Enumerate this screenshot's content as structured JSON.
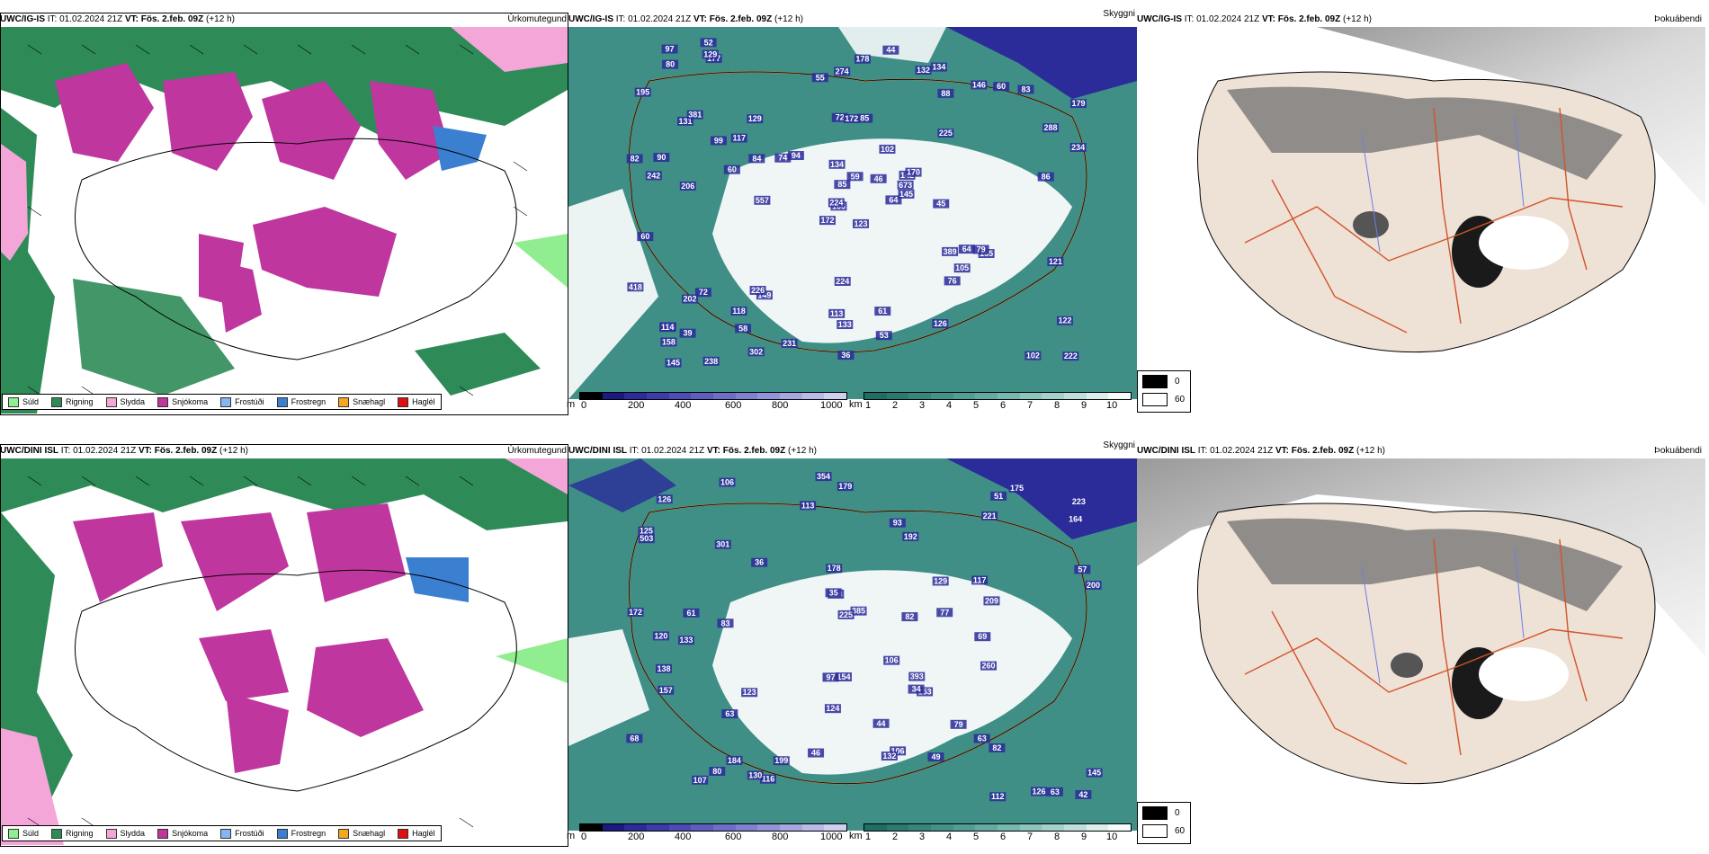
{
  "rows": [
    {
      "model": "UWC/IG-IS",
      "it_label": "IT:",
      "it_value": "01.02.2024 21Z",
      "vt_label": "VT:",
      "vt_value": "Fös. 2.feb. 09Z",
      "lead": "(+12 h)",
      "ceiling_numbers": [
        "123",
        "131",
        "166",
        "173",
        "142",
        "149",
        "134",
        "85",
        "88",
        "64",
        "177",
        "222",
        "206",
        "179",
        "172",
        "225",
        "238",
        "72",
        "102",
        "72",
        "94",
        "158",
        "58",
        "172",
        "170",
        "155",
        "381",
        "274",
        "242",
        "389",
        "234",
        "224",
        "113",
        "85",
        "129",
        "146",
        "226",
        "102",
        "122",
        "79",
        "44",
        "74",
        "60",
        "76",
        "302",
        "82",
        "673",
        "145",
        "133",
        "145",
        "202",
        "288",
        "195",
        "105",
        "126",
        "118",
        "129",
        "97",
        "61",
        "83",
        "178",
        "557",
        "90",
        "117",
        "60",
        "52",
        "132",
        "55",
        "59",
        "418",
        "224",
        "231",
        "64",
        "84",
        "114",
        "80",
        "99",
        "60",
        "134",
        "53",
        "46",
        "39",
        "45",
        "121",
        "36",
        "86"
      ]
    },
    {
      "model": "UWC/DINI ISL",
      "it_label": "IT:",
      "it_value": "01.02.2024 21Z",
      "vt_label": "VT:",
      "vt_value": "Fös. 2.feb. 09Z",
      "lead": "(+12 h)",
      "ceiling_numbers": [
        "172",
        "179",
        "117",
        "223",
        "125",
        "126",
        "133",
        "192",
        "178",
        "175",
        "385",
        "260",
        "354",
        "503",
        "301",
        "63",
        "106",
        "120",
        "106",
        "124",
        "79",
        "82",
        "164",
        "118",
        "184",
        "225",
        "393",
        "106",
        "116",
        "132",
        "138",
        "112",
        "82",
        "107",
        "130",
        "157",
        "209",
        "126",
        "199",
        "36",
        "44",
        "77",
        "145",
        "200",
        "154",
        "123",
        "221",
        "68",
        "46",
        "83",
        "129",
        "63",
        "153",
        "69",
        "49",
        "113",
        "34",
        "35",
        "51",
        "93",
        "97",
        "80",
        "57",
        "42",
        "63",
        "61"
      ]
    }
  ],
  "panel_right_labels": {
    "precip": "Úrkomutegund",
    "ceiling": "Skyggni",
    "fog": "Þokuábendi"
  },
  "precip_legend": [
    {
      "label": "Súld",
      "color": "#90ee90"
    },
    {
      "label": "Rigning",
      "color": "#2e8b57"
    },
    {
      "label": "Slydda",
      "color": "#f4a6d8"
    },
    {
      "label": "Snjókoma",
      "color": "#c0369f"
    },
    {
      "label": "Frostúði",
      "color": "#87b5f0"
    },
    {
      "label": "Frostregn",
      "color": "#3a7fd0"
    },
    {
      "label": "Snæhagl",
      "color": "#f5a623"
    },
    {
      "label": "Haglél",
      "color": "#e01010"
    }
  ],
  "ceiling_bar": {
    "unit": "m",
    "ticks": [
      "0",
      "200",
      "400",
      "600",
      "800",
      "1000"
    ],
    "colors": [
      "#000000",
      "#1a1a80",
      "#2b2b9a",
      "#3b3baa",
      "#4c4cb5",
      "#5d5dbf",
      "#6e6ec8",
      "#8080d0",
      "#9393d9",
      "#a6a6e1",
      "#babae9",
      "#cfcff1"
    ]
  },
  "visibility_bar": {
    "unit": "km",
    "ticks": [
      "1",
      "2",
      "3",
      "4",
      "5",
      "6",
      "7",
      "8",
      "9",
      "10"
    ],
    "colors": [
      "#1f6e66",
      "#2a7a72",
      "#36867d",
      "#439289",
      "#529e95",
      "#63aaa2",
      "#77b7af",
      "#8dc4bd",
      "#a5d1cb",
      "#bfdfda",
      "#dbeeeb",
      "#f5fbfa"
    ]
  },
  "fog_legend": {
    "values": [
      "0",
      "60"
    ]
  }
}
